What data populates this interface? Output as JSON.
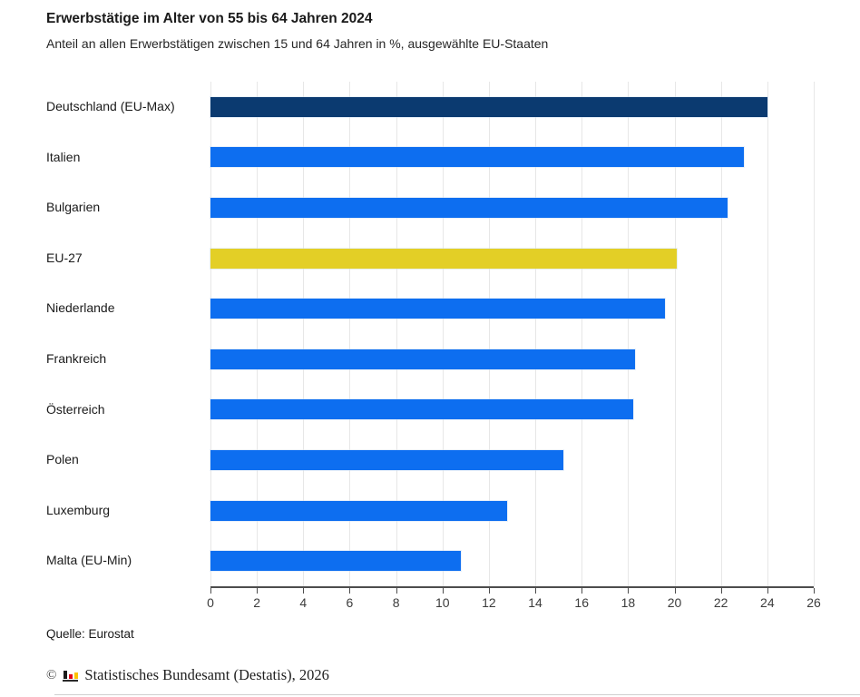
{
  "header": {
    "title": "Erwerbstätige im Alter von 55 bis 64 Jahren 2024",
    "subtitle": "Anteil an allen Erwerbstätigen zwischen 15 und 64 Jahren in %, ausgewählte EU-Staaten"
  },
  "chart_data": {
    "type": "bar",
    "orientation": "horizontal",
    "title": "Erwerbstätige im Alter von 55 bis 64 Jahren 2024",
    "subtitle": "Anteil an allen Erwerbstätigen zwischen 15 und 64 Jahren in %, ausgewählte EU-Staaten",
    "unit": "%",
    "categories": [
      "Deutschland (EU-Max)",
      "Italien",
      "Bulgarien",
      "EU-27",
      "Niederlande",
      "Frankreich",
      "Österreich",
      "Polen",
      "Luxemburg",
      "Malta (EU-Min)"
    ],
    "values": [
      24.0,
      23.0,
      22.3,
      20.1,
      19.6,
      18.3,
      18.2,
      15.2,
      12.8,
      10.8
    ],
    "bar_colors": [
      "#0b3a70",
      "#0d6ef0",
      "#0d6ef0",
      "#e3cf26",
      "#0d6ef0",
      "#0d6ef0",
      "#0d6ef0",
      "#0d6ef0",
      "#0d6ef0",
      "#0d6ef0"
    ],
    "colors": {
      "default_bar": "#0d6ef0",
      "eu_max_highlight": "#0b3a70",
      "eu27_highlight": "#e3cf26",
      "gridline": "#e7e7e7",
      "axis": "#4d4d4d"
    },
    "xlim": [
      0,
      26
    ],
    "xticks": [
      0,
      2,
      4,
      6,
      8,
      10,
      12,
      14,
      16,
      18,
      20,
      22,
      24,
      26
    ],
    "grid": true,
    "legend": "none",
    "xlabel": "",
    "ylabel": ""
  },
  "footer": {
    "source": "Quelle: Eurostat",
    "copyright_symbol": "©",
    "copyright_text": "Statistisches Bundesamt (Destatis), 2026",
    "logo_icon": "destatis-mini-bar-chart-icon"
  }
}
